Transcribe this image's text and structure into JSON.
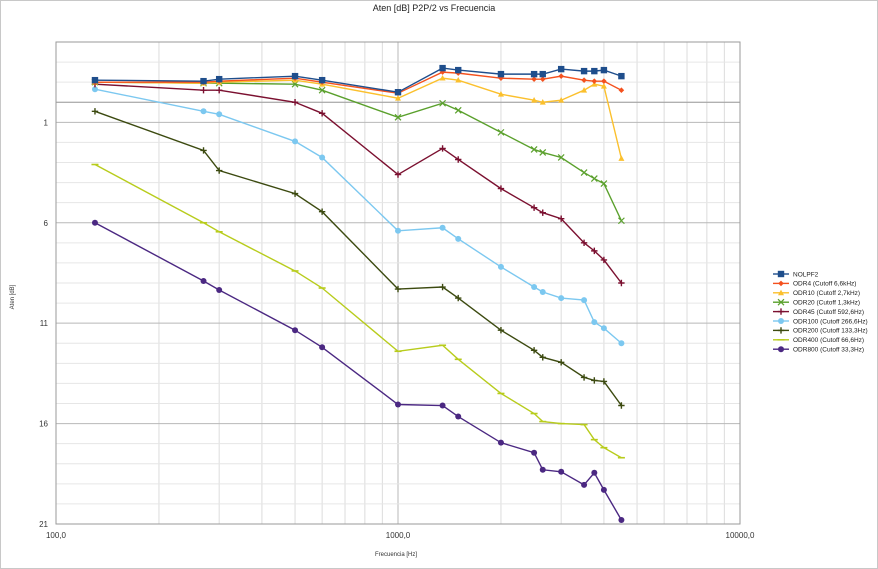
{
  "chart_data": {
    "type": "line",
    "title": "Aten [dB] P2P/2 vs Frecuencia",
    "xlabel": "Frecuencia [Hz]",
    "ylabel": "Aten [dB]",
    "x_scale": "log",
    "xlim": [
      100,
      10000
    ],
    "ylim": [
      -3,
      21
    ],
    "y_reversed": true,
    "x_tick_labels": [
      "100,0",
      "1000,0",
      "10000,0"
    ],
    "x_tick_values": [
      100,
      1000,
      10000
    ],
    "y_tick_labels": [
      "1",
      "6",
      "11",
      "16",
      "21"
    ],
    "y_tick_values": [
      1,
      6,
      11,
      16,
      21
    ],
    "grid": true,
    "legend_position": "right",
    "x": [
      130,
      270,
      300,
      500,
      600,
      1000,
      1350,
      1500,
      2000,
      2500,
      2650,
      3000,
      3500,
      3750,
      4000,
      4500
    ],
    "series": [
      {
        "name": "NOLPF2",
        "color": "#1f4e8c",
        "marker": "square",
        "values": [
          -1.1,
          -1.05,
          -1.15,
          -1.3,
          -1.1,
          -0.5,
          -1.7,
          -1.6,
          -1.4,
          -1.4,
          -1.4,
          -1.65,
          -1.55,
          -1.55,
          -1.6,
          -1.3
        ]
      },
      {
        "name": "ODR4 (Cutoff 6,6kHz)",
        "color": "#f4511e",
        "marker": "diamond",
        "values": [
          -1.0,
          -1.0,
          -1.05,
          -1.2,
          -1.0,
          -0.45,
          -1.5,
          -1.45,
          -1.2,
          -1.15,
          -1.15,
          -1.3,
          -1.1,
          -1.05,
          -1.05,
          -0.6
        ]
      },
      {
        "name": "ODR10 (Cutoff 2,7kHz)",
        "color": "#fbc02d",
        "marker": "triangle",
        "values": [
          -1.0,
          -0.95,
          -1.0,
          -1.1,
          -0.9,
          -0.2,
          -1.2,
          -1.1,
          -0.4,
          -0.1,
          0.0,
          -0.1,
          -0.6,
          -0.9,
          -0.8,
          2.8
        ]
      },
      {
        "name": "ODR20 (Cutoff 1,3kHz)",
        "color": "#5aa02c",
        "marker": "x",
        "values": [
          -1.0,
          -0.95,
          -0.95,
          -0.9,
          -0.6,
          0.75,
          0.05,
          0.4,
          1.5,
          2.35,
          2.5,
          2.75,
          3.5,
          3.8,
          4.05,
          5.9
        ]
      },
      {
        "name": "ODR45 (Cutoff 592,6Hz)",
        "color": "#7b1030",
        "marker": "plus",
        "values": [
          -0.9,
          -0.6,
          -0.6,
          0.0,
          0.55,
          3.6,
          2.3,
          2.85,
          4.3,
          5.25,
          5.5,
          5.8,
          7.0,
          7.4,
          7.85,
          9.0
        ]
      },
      {
        "name": "ODR100 (Cutoff 266,6Hz)",
        "color": "#7cc8f0",
        "marker": "circle",
        "values": [
          -0.65,
          0.45,
          0.6,
          1.95,
          2.75,
          6.4,
          6.25,
          6.8,
          8.2,
          9.2,
          9.45,
          9.75,
          9.85,
          10.95,
          11.25,
          12.0
        ]
      },
      {
        "name": "ODR200 (Cutoff 133,3Hz)",
        "color": "#3c4a10",
        "marker": "plus",
        "values": [
          0.45,
          2.4,
          3.4,
          4.55,
          5.45,
          9.3,
          9.2,
          9.75,
          11.35,
          12.35,
          12.7,
          12.95,
          13.7,
          13.85,
          13.9,
          15.1
        ]
      },
      {
        "name": "ODR400 (Cutoff 66,6Hz)",
        "color": "#b8cc1c",
        "marker": "dash",
        "values": [
          3.1,
          6.0,
          6.45,
          8.4,
          9.25,
          12.4,
          12.1,
          12.8,
          14.5,
          15.5,
          15.9,
          16.0,
          16.05,
          16.8,
          17.2,
          17.7
        ]
      },
      {
        "name": "ODR800 (Cutoff 33,3Hz)",
        "color": "#4b2882",
        "marker": "circle",
        "values": [
          6.0,
          8.9,
          9.35,
          11.35,
          12.2,
          15.05,
          15.1,
          15.65,
          16.95,
          17.45,
          18.3,
          18.4,
          19.05,
          18.45,
          19.3,
          20.8
        ]
      }
    ]
  }
}
